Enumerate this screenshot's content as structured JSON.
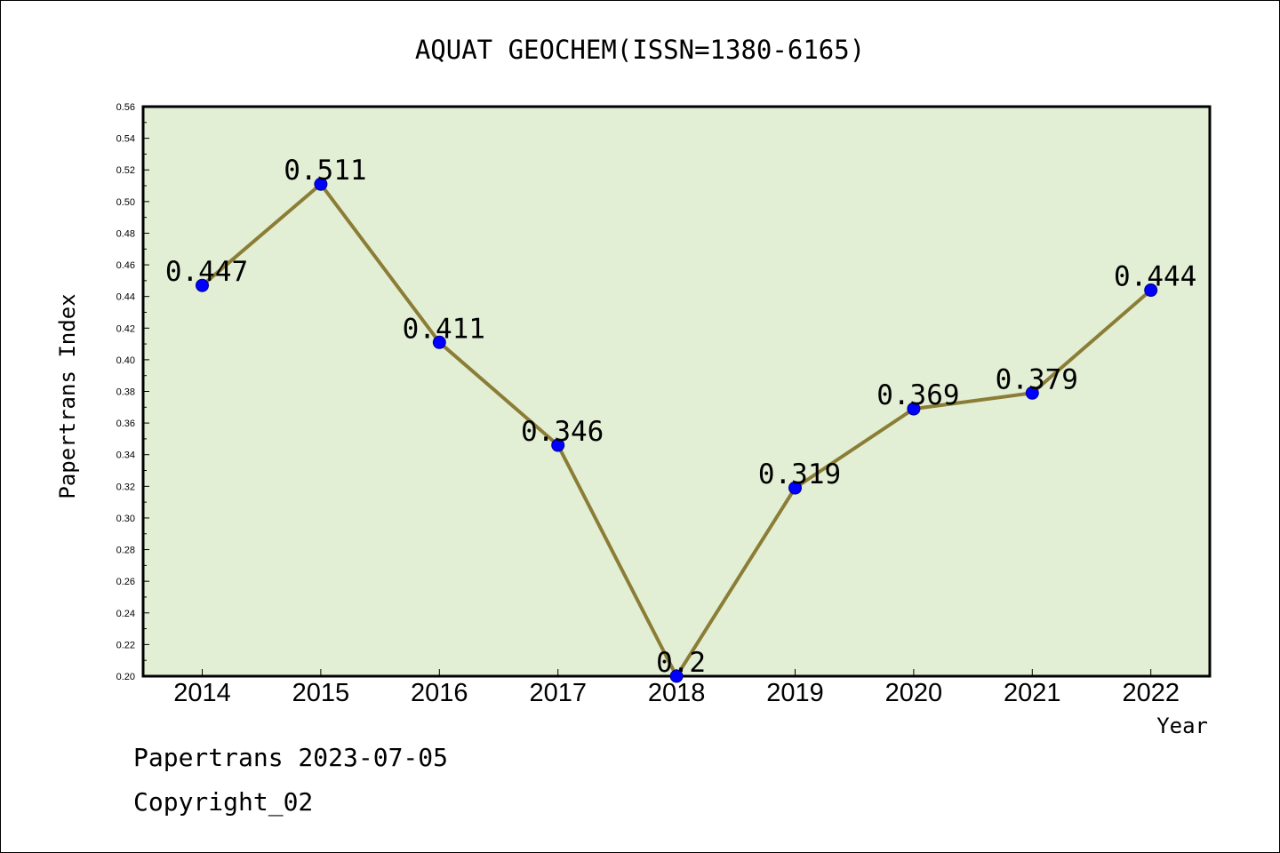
{
  "chart_data": {
    "type": "line",
    "title": "AQUAT GEOCHEM(ISSN=1380-6165)",
    "xlabel": "Year",
    "ylabel": "Papertrans Index",
    "categories": [
      "2014",
      "2015",
      "2016",
      "2017",
      "2018",
      "2019",
      "2020",
      "2021",
      "2022"
    ],
    "values": [
      0.447,
      0.511,
      0.411,
      0.346,
      0.2,
      0.319,
      0.369,
      0.379,
      0.444
    ],
    "data_labels": [
      "0.447",
      "0.511",
      "0.411",
      "0.346",
      "0.2",
      "0.319",
      "0.369",
      "0.379",
      "0.444"
    ],
    "ylim": [
      0.2,
      0.56
    ],
    "yticks": [
      "0.20",
      "0.22",
      "0.24",
      "0.26",
      "0.28",
      "0.30",
      "0.32",
      "0.34",
      "0.36",
      "0.38",
      "0.40",
      "0.42",
      "0.44",
      "0.46",
      "0.48",
      "0.50",
      "0.52",
      "0.54",
      "0.56"
    ],
    "grid": false,
    "legend": "none",
    "plot_background": "#e2efd5",
    "line_color": "#8b7d36",
    "marker_color": "#0000ff"
  },
  "footer": {
    "line1": "Papertrans 2023-07-05",
    "line2": "Copyright_02"
  }
}
